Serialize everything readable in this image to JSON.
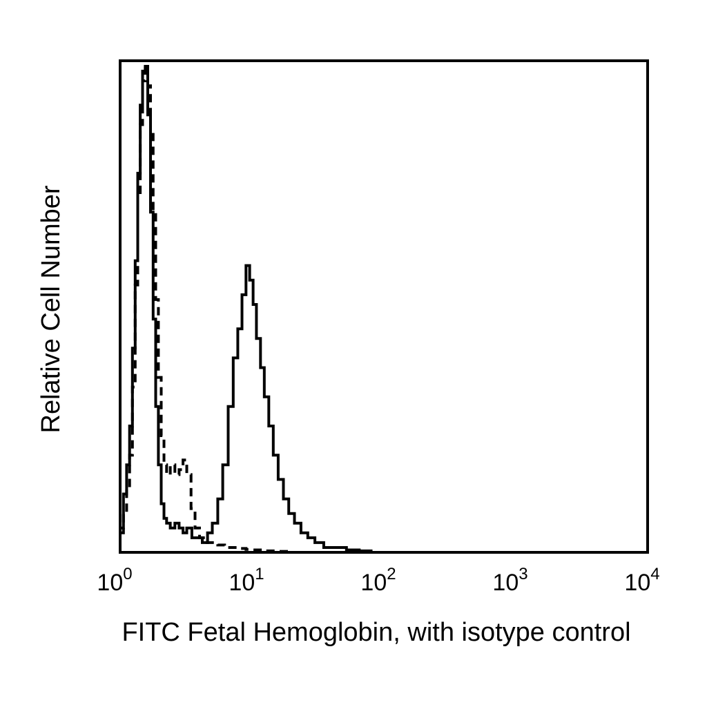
{
  "chart_data": {
    "type": "line",
    "xlabel": "FITC Fetal Hemoglobin, with isotype control",
    "ylabel": "Relative Cell Number",
    "xscale": "log",
    "xlim": [
      1,
      10000
    ],
    "ylim": [
      0,
      100
    ],
    "grid": false,
    "legend": "none",
    "x_ticks": [
      {
        "base": "10",
        "exp": "0",
        "value": 1
      },
      {
        "base": "10",
        "exp": "1",
        "value": 10
      },
      {
        "base": "10",
        "exp": "2",
        "value": 100
      },
      {
        "base": "10",
        "exp": "3",
        "value": 1000
      },
      {
        "base": "10",
        "exp": "4",
        "value": 10000
      }
    ],
    "series": [
      {
        "style": "solid",
        "x": [
          1.0,
          1.06,
          1.12,
          1.18,
          1.24,
          1.3,
          1.36,
          1.42,
          1.48,
          1.55,
          1.62,
          1.7,
          1.78,
          1.86,
          1.95,
          2.05,
          2.15,
          2.25,
          2.4,
          2.6,
          2.8,
          3.0,
          3.2,
          3.5,
          3.8,
          4.2,
          4.6,
          5.0,
          5.5,
          6.0,
          6.6,
          7.2,
          7.8,
          8.4,
          9.0,
          9.6,
          10.2,
          10.8,
          11.6,
          12.4,
          13.4,
          14.5,
          15.8,
          17.3,
          19.0,
          21.0,
          23.5,
          26.5,
          30.0,
          35.0,
          42.0,
          52.0,
          65.0,
          80.0
        ],
        "values": [
          5,
          12,
          18,
          26,
          42,
          60,
          78,
          92,
          99,
          100,
          90,
          70,
          48,
          30,
          18,
          10,
          7,
          6,
          5,
          6,
          5,
          4,
          5,
          3,
          3,
          2,
          4,
          6,
          11,
          18,
          30,
          40,
          46,
          53,
          59,
          56,
          51,
          44,
          38,
          32,
          26,
          20,
          15,
          11,
          8,
          6,
          4,
          3,
          2,
          1,
          1,
          0.5,
          0.3,
          0.2
        ]
      },
      {
        "style": "dashed",
        "x": [
          1.0,
          1.06,
          1.12,
          1.18,
          1.24,
          1.3,
          1.36,
          1.42,
          1.48,
          1.55,
          1.62,
          1.7,
          1.78,
          1.86,
          1.95,
          2.05,
          2.15,
          2.25,
          2.4,
          2.6,
          2.8,
          3.0,
          3.2,
          3.45,
          3.7,
          4.0,
          4.4,
          4.9,
          5.5,
          6.2,
          7.0,
          8.0,
          9.0,
          10.0,
          12.0,
          15.0,
          20.0
        ],
        "values": [
          4,
          8,
          13,
          20,
          34,
          55,
          74,
          88,
          97,
          100,
          96,
          86,
          70,
          52,
          36,
          24,
          18,
          16,
          18,
          16,
          17,
          19,
          16,
          9,
          5,
          3,
          2,
          2,
          1.5,
          1,
          1,
          0.8,
          0.6,
          0.5,
          0.3,
          0.2,
          0.1
        ]
      }
    ]
  }
}
